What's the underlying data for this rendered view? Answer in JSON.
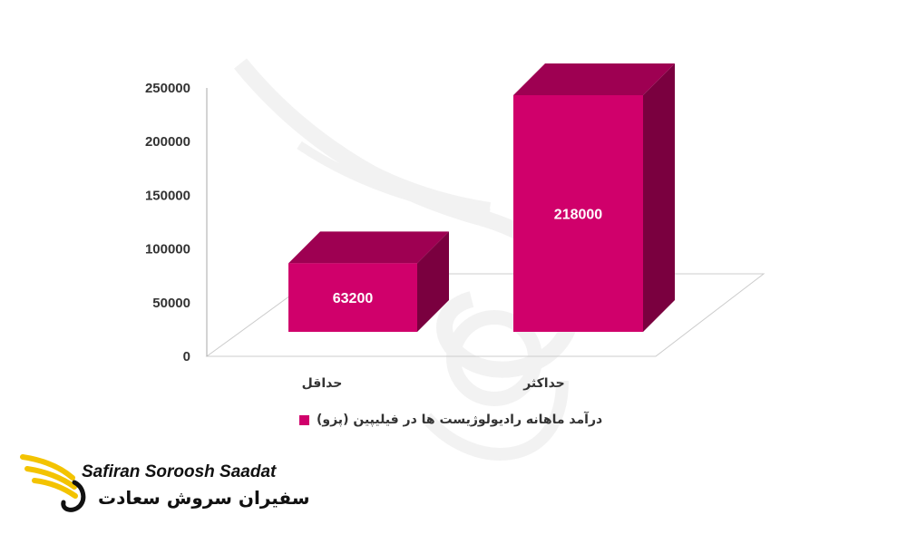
{
  "chart_data": {
    "type": "bar",
    "categories": [
      "حداقل",
      "حداکثر"
    ],
    "series": [
      {
        "name": "درآمد ماهانه رادیولوژیست ها در فیلیپین (پزو)",
        "values": [
          63200,
          218000
        ]
      }
    ],
    "ylim": [
      0,
      250000
    ],
    "yticks": [
      0,
      50000,
      100000,
      150000,
      200000,
      250000
    ],
    "grid": false,
    "legend_position": "bottom",
    "style": "3d",
    "colors": {
      "front": "#d0006b",
      "top": "#9e0052",
      "side": "#7a003f",
      "floor": "#cccccc",
      "axis": "#aaaaaa"
    }
  },
  "legend": {
    "label": "درآمد ماهانه رادیولوژیست ها در فیلیپین (پزو)",
    "color": "#d0006b"
  },
  "watermark": {
    "brand_en": "Safiran Soroosh Saadat",
    "brand_fa": "سفیران سروش سعادت",
    "accent": "#f3c300"
  }
}
